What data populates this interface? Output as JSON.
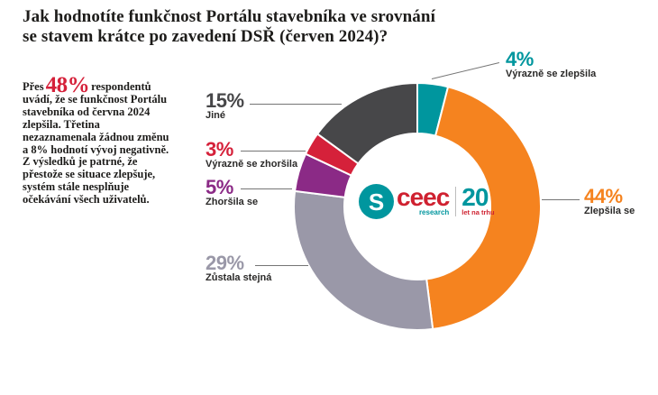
{
  "header": {
    "title_line1": "Jak hodnotíte funkčnost Portálu stavebníka ve srovnání",
    "title_line2": "se stavem krátce po zavedení DSŘ (červen 2024)?"
  },
  "summary": {
    "prefix": "Přes",
    "highlight": "48%",
    "body": "respondentů uvádí, že se funkčnost Portálu stavebníka od června 2024 zlepšila. Třetina nezaznamenala žádnou změnu a 8% hodnotí vývoj negativně. Z výsledků je patrné, že přestože se situace zlepšuje, systém stále nesplňuje očekávání všech uživatelů."
  },
  "logo": {
    "glyph": "S",
    "name": "ceec",
    "sub": "research",
    "years": "20",
    "years_sub": "let na trhu",
    "teal": "#00969e",
    "red": "#cf2130"
  },
  "callouts": [
    {
      "id": "jine",
      "pct": "15%",
      "label": "Jiné",
      "color": "#474749"
    },
    {
      "id": "vyrazne-zhorsila",
      "pct": "3%",
      "label": "Výrazně se zhoršila",
      "color": "#d5213a"
    },
    {
      "id": "zhorsila",
      "pct": "5%",
      "label": "Zhoršila se",
      "color": "#8b2a86"
    },
    {
      "id": "zustala",
      "pct": "29%",
      "label": "Zůstala stejná",
      "color": "#9a98a8"
    },
    {
      "id": "vyrazne-zlepsila",
      "pct": "4%",
      "label": "Výrazně se zlepšila",
      "color": "#00969e"
    },
    {
      "id": "zlepsila",
      "pct": "44%",
      "label": "Zlepšila se",
      "color": "#f5831f"
    }
  ],
  "chart_data": {
    "type": "pie",
    "donut": true,
    "title": "Jak hodnotíte funkčnost Portálu stavebníka ve srovnání se stavem krátce po zavedení DSŘ (červen 2024)?",
    "unit": "%",
    "start_angle_deg": 0,
    "direction": "clockwise",
    "legend_position": "callouts",
    "segments": [
      {
        "label": "Výrazně se zlepšila",
        "value": 4,
        "color": "#00969e"
      },
      {
        "label": "Zlepšila se",
        "value": 44,
        "color": "#f5831f"
      },
      {
        "label": "Zůstala stejná",
        "value": 29,
        "color": "#9a98a8"
      },
      {
        "label": "Zhoršila se",
        "value": 5,
        "color": "#8b2a86"
      },
      {
        "label": "Výrazně se zhoršila",
        "value": 3,
        "color": "#d5213a"
      },
      {
        "label": "Jiné",
        "value": 15,
        "color": "#474749"
      }
    ]
  }
}
